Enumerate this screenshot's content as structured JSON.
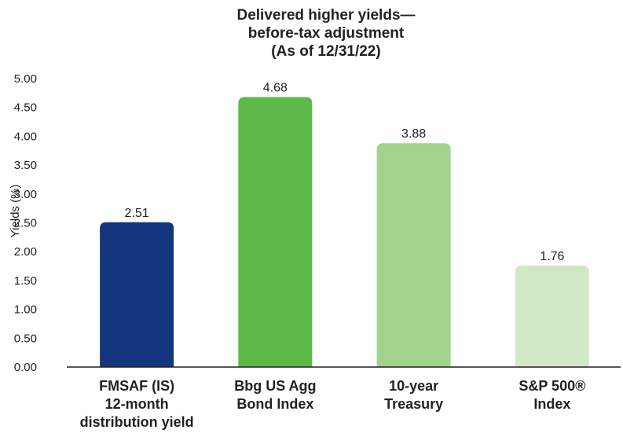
{
  "chart_data": {
    "type": "bar",
    "title_lines": [
      "Delivered higher yields—",
      "before-tax adjustment",
      "(As of 12/31/22)"
    ],
    "ylabel": "Yields (%)",
    "xlabel": "",
    "ylim": [
      0,
      5
    ],
    "yticks": [
      "0.00",
      "0.50",
      "1.00",
      "1.50",
      "2.00",
      "2.50",
      "3.00",
      "3.50",
      "4.00",
      "4.50",
      "5.00"
    ],
    "grid": false,
    "legend": "none",
    "categories": [
      [
        "FMSAF (IS)",
        "12-month",
        "distribution yield"
      ],
      [
        "Bbg US Agg",
        "Bond Index"
      ],
      [
        "10-year",
        "Treasury"
      ],
      [
        "S&P 500®",
        "Index"
      ]
    ],
    "values": [
      2.51,
      4.68,
      3.88,
      1.76
    ],
    "value_labels": [
      "2.51",
      "4.68",
      "3.88",
      "1.76"
    ],
    "colors": [
      "#12357e",
      "#5cb947",
      "#a2d28b",
      "#d0e8c5"
    ],
    "axis_color": "#231f20"
  }
}
